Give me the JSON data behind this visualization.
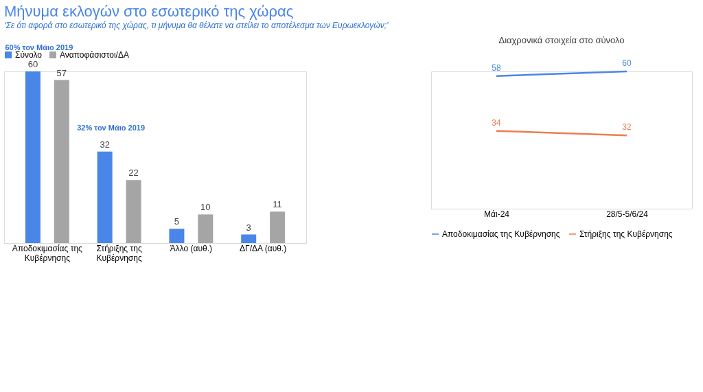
{
  "chart_data": [
    {
      "type": "bar",
      "title": "Μήνυμα εκλογών στο εσωτερικό της χώρας",
      "subtitle": "‘Σε ότι αφορά στο εσωτερικό της χώρας, τι μήνυμα θα θέλατε να στείλει το αποτέλεσμα των Ευρωεκλογών;’",
      "categories": [
        "Αποδοκιμασίας της Κυβέρνησης",
        "Στήριξης της Κυβέρνησης",
        "Άλλο (αυθ.)",
        "ΔΓ/ΔΑ (αυθ.)"
      ],
      "series": [
        {
          "name": "Σύνολο",
          "color": "#4a86e8",
          "values": [
            60,
            32,
            5,
            3
          ]
        },
        {
          "name": "Αναποφάσιστοι/ΔΑ",
          "color": "#a5a5a5",
          "values": [
            57,
            22,
            10,
            11
          ]
        }
      ],
      "annotations": [
        "60% τον Μάιο 2019",
        "32% τον Μάιο 2019"
      ],
      "data_labels": true,
      "legend": "top",
      "grid": false
    },
    {
      "type": "line",
      "title": "Διαχρονικά στοιχεία στο σύνολο",
      "categories": [
        "Μάι-24",
        "28/5-5/6/24"
      ],
      "series": [
        {
          "name": "Αποδοκιμασίας της Κυβέρνησης",
          "color": "#4a86e8",
          "values": [
            58,
            60
          ]
        },
        {
          "name": "Στήριξης της Κυβέρνησης",
          "color": "#ed7d4f",
          "values": [
            34,
            32
          ]
        }
      ],
      "data_labels": true,
      "legend": "bottom",
      "marker": "none",
      "grid": false
    }
  ]
}
